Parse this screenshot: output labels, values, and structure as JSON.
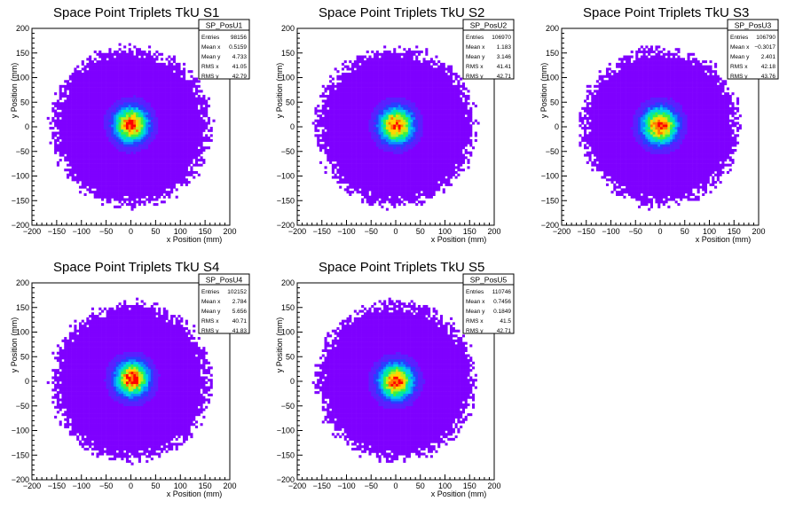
{
  "chart_data": [
    {
      "type": "heatmap",
      "title": "Space Point Triplets TkU S1",
      "xlabel": "x Position (mm)",
      "ylabel": "y Position (mm)",
      "xlim": [
        -200,
        200
      ],
      "ylim": [
        -200,
        200
      ],
      "xticks": [
        "−200",
        "−150",
        "−100",
        "−50",
        "0",
        "50",
        "100",
        "150",
        "200"
      ],
      "yticks": [
        "200",
        "150",
        "100",
        "50",
        "0",
        "−50",
        "−100",
        "−150",
        "−200"
      ],
      "stats_box": {
        "name": "SP_PosU1",
        "rows": [
          {
            "label": "Entries",
            "value": "98156"
          },
          {
            "label": "Mean x",
            "value": "0.5159"
          },
          {
            "label": "Mean y",
            "value": "4.733"
          },
          {
            "label": "RMS x",
            "value": "41.05"
          },
          {
            "label": "RMS y",
            "value": "42.79"
          }
        ]
      },
      "distribution": {
        "mean_x": 0.5159,
        "mean_y": 4.733,
        "rms_x": 41.05,
        "rms_y": 42.79,
        "radius": 160
      }
    },
    {
      "type": "heatmap",
      "title": "Space Point Triplets TkU S2",
      "xlabel": "x Position (mm)",
      "ylabel": "y Position (mm)",
      "xlim": [
        -200,
        200
      ],
      "ylim": [
        -200,
        200
      ],
      "xticks": [
        "−200",
        "−150",
        "−100",
        "−50",
        "0",
        "50",
        "100",
        "150",
        "200"
      ],
      "yticks": [
        "200",
        "150",
        "100",
        "50",
        "0",
        "−50",
        "−100",
        "−150",
        "−200"
      ],
      "stats_box": {
        "name": "SP_PosU2",
        "rows": [
          {
            "label": "Entries",
            "value": "106970"
          },
          {
            "label": "Mean x",
            "value": "1.183"
          },
          {
            "label": "Mean y",
            "value": "3.146"
          },
          {
            "label": "RMS x",
            "value": "41.41"
          },
          {
            "label": "RMS y",
            "value": "42.71"
          }
        ]
      },
      "distribution": {
        "mean_x": 1.183,
        "mean_y": 3.146,
        "rms_x": 41.41,
        "rms_y": 42.71,
        "radius": 160
      }
    },
    {
      "type": "heatmap",
      "title": "Space Point Triplets TkU S3",
      "xlabel": "x Position (mm)",
      "ylabel": "y Position (mm)",
      "xlim": [
        -200,
        200
      ],
      "ylim": [
        -200,
        200
      ],
      "xticks": [
        "−200",
        "−150",
        "−100",
        "−50",
        "0",
        "50",
        "100",
        "150",
        "200"
      ],
      "yticks": [
        "200",
        "150",
        "100",
        "50",
        "0",
        "−50",
        "−100",
        "−150",
        "−200"
      ],
      "stats_box": {
        "name": "SP_PosU3",
        "rows": [
          {
            "label": "Entries",
            "value": "106790"
          },
          {
            "label": "Mean x",
            "value": "−0.3017"
          },
          {
            "label": "Mean y",
            "value": "2.401"
          },
          {
            "label": "RMS x",
            "value": "42.18"
          },
          {
            "label": "RMS y",
            "value": "43.76"
          }
        ]
      },
      "distribution": {
        "mean_x": -0.3017,
        "mean_y": 2.401,
        "rms_x": 42.18,
        "rms_y": 43.76,
        "radius": 160
      }
    },
    {
      "type": "heatmap",
      "title": "Space Point Triplets TkU S4",
      "xlabel": "x Position (mm)",
      "ylabel": "y Position (mm)",
      "xlim": [
        -200,
        200
      ],
      "ylim": [
        -200,
        200
      ],
      "xticks": [
        "−200",
        "−150",
        "−100",
        "−50",
        "0",
        "50",
        "100",
        "150",
        "200"
      ],
      "yticks": [
        "200",
        "150",
        "100",
        "50",
        "0",
        "−50",
        "−100",
        "−150",
        "−200"
      ],
      "stats_box": {
        "name": "SP_PosU4",
        "rows": [
          {
            "label": "Entries",
            "value": "102152"
          },
          {
            "label": "Mean x",
            "value": "2.784"
          },
          {
            "label": "Mean y",
            "value": "5.656"
          },
          {
            "label": "RMS x",
            "value": "40.71"
          },
          {
            "label": "RMS y",
            "value": "41.83"
          }
        ]
      },
      "distribution": {
        "mean_x": 2.784,
        "mean_y": 5.656,
        "rms_x": 40.71,
        "rms_y": 41.83,
        "radius": 160
      }
    },
    {
      "type": "heatmap",
      "title": "Space Point Triplets TkU S5",
      "xlabel": "x Position (mm)",
      "ylabel": "y Position (mm)",
      "xlim": [
        -200,
        200
      ],
      "ylim": [
        -200,
        200
      ],
      "xticks": [
        "−200",
        "−150",
        "−100",
        "−50",
        "0",
        "50",
        "100",
        "150",
        "200"
      ],
      "yticks": [
        "200",
        "150",
        "100",
        "50",
        "0",
        "−50",
        "−100",
        "−150",
        "−200"
      ],
      "stats_box": {
        "name": "SP_PosU5",
        "rows": [
          {
            "label": "Entries",
            "value": "110746"
          },
          {
            "label": "Mean x",
            "value": "0.7456"
          },
          {
            "label": "Mean y",
            "value": "0.1849"
          },
          {
            "label": "RMS x",
            "value": "41.5"
          },
          {
            "label": "RMS y",
            "value": "42.71"
          }
        ]
      },
      "distribution": {
        "mean_x": 0.7456,
        "mean_y": 0.1849,
        "rms_x": 41.5,
        "rms_y": 42.71,
        "radius": 160
      }
    }
  ],
  "colors": {
    "palette": [
      "#7f00ff",
      "#5a1fff",
      "#2a3dff",
      "#0a8cff",
      "#00d0e8",
      "#00e9a0",
      "#3ef23e",
      "#b5f01d",
      "#ffd500",
      "#ff7a00",
      "#ff0000"
    ],
    "axis": "#000000",
    "background": "#ffffff"
  }
}
